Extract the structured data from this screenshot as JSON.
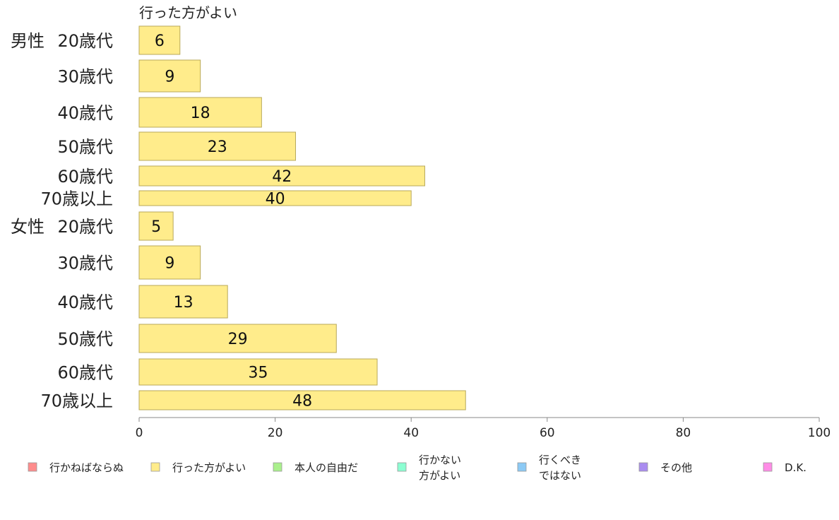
{
  "chart_data": {
    "type": "bar",
    "orientation": "horizontal",
    "series_label": "行った方がよい",
    "xlim": [
      0,
      100
    ],
    "xticks": [
      "0",
      "20",
      "40",
      "60",
      "80",
      "100"
    ],
    "grid": false,
    "bar_color": "#ffec8b",
    "bar_stroke": "#b8a95a",
    "groups": [
      {
        "label": "男性",
        "categories": [
          "20歳代",
          "30歳代",
          "40歳代",
          "50歳代",
          "60歳代",
          "70歳以上"
        ],
        "values": [
          6,
          9,
          18,
          23,
          42,
          40
        ],
        "value_labels": [
          "6",
          "9",
          "18",
          "23",
          "42",
          "40"
        ]
      },
      {
        "label": "女性",
        "categories": [
          "20歳代",
          "30歳代",
          "40歳代",
          "50歳代",
          "60歳代",
          "70歳以上"
        ],
        "values": [
          5,
          9,
          13,
          29,
          35,
          48
        ],
        "value_labels": [
          "5",
          "9",
          "13",
          "29",
          "35",
          "48"
        ]
      }
    ],
    "legend": {
      "placement": "bottom",
      "items": [
        {
          "lines": [
            "行かねばならぬ"
          ],
          "color": "#ff8c8c"
        },
        {
          "lines": [
            "行った方がよい"
          ],
          "color": "#ffec8b"
        },
        {
          "lines": [
            "本人の自由だ"
          ],
          "color": "#aaf08c"
        },
        {
          "lines": [
            "行かない",
            "方がよい"
          ],
          "color": "#8cffd2"
        },
        {
          "lines": [
            "行くべき",
            "ではない"
          ],
          "color": "#8ccaf5"
        },
        {
          "lines": [
            "その他"
          ],
          "color": "#aa8cf0"
        },
        {
          "lines": [
            "D.K."
          ],
          "color": "#ff8ce6"
        }
      ]
    }
  }
}
